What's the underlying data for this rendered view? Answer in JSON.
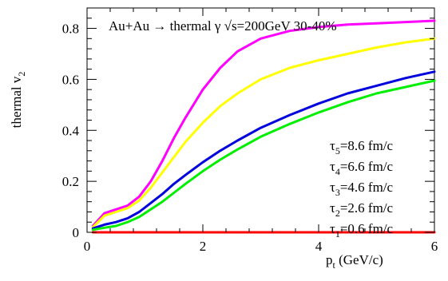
{
  "chart_data": {
    "type": "line",
    "title": "Au+Au → thermal γ √s=200GeV 30-40%",
    "title_parts": {
      "prefix": "Au+Au ",
      "arrow": "→",
      "middle": " thermal γ ",
      "root": "√",
      "suffix": "s=200GeV 30-40%"
    },
    "xlabel": {
      "main": "p",
      "sub": "t",
      "rest": " (GeV/c)"
    },
    "ylabel": {
      "main": "thermal v",
      "sub": "2"
    },
    "xlim": [
      0,
      6
    ],
    "ylim": [
      0,
      0.88
    ],
    "xticks": [
      0,
      2,
      4,
      6
    ],
    "xtick_labels": [
      "0",
      "2",
      "4",
      "6"
    ],
    "yticks": [
      0,
      0.2,
      0.4,
      0.6,
      0.8
    ],
    "ytick_labels": [
      "0",
      "0.2",
      "0.4",
      "0.6",
      "0.8"
    ],
    "grid": false,
    "legend_placement": "bottom-right",
    "legend": [
      {
        "sym": "τ",
        "sub": "5",
        "text": "=8.6 fm/c"
      },
      {
        "sym": "τ",
        "sub": "4",
        "text": "=6.6 fm/c"
      },
      {
        "sym": "τ",
        "sub": "3",
        "text": "=4.6 fm/c"
      },
      {
        "sym": "τ",
        "sub": "2",
        "text": "=2.6 fm/c"
      },
      {
        "sym": "τ",
        "sub": "1",
        "text": "=0.6 fm/c"
      }
    ],
    "series": [
      {
        "color": "#ff00ff",
        "x": [
          0.1,
          0.3,
          0.5,
          0.7,
          0.9,
          1.1,
          1.3,
          1.5,
          1.7,
          2.0,
          2.3,
          2.6,
          3.0,
          3.5,
          4.0,
          4.5,
          5.0,
          5.5,
          6.0
        ],
        "y": [
          0.025,
          0.075,
          0.09,
          0.105,
          0.14,
          0.2,
          0.28,
          0.37,
          0.45,
          0.56,
          0.645,
          0.71,
          0.76,
          0.79,
          0.805,
          0.815,
          0.82,
          0.825,
          0.83
        ]
      },
      {
        "color": "#ffff00",
        "x": [
          0.1,
          0.3,
          0.5,
          0.7,
          0.9,
          1.1,
          1.3,
          1.5,
          1.7,
          2.0,
          2.3,
          2.6,
          3.0,
          3.5,
          4.0,
          4.5,
          5.0,
          5.5,
          6.0
        ],
        "y": [
          0.02,
          0.065,
          0.08,
          0.095,
          0.125,
          0.175,
          0.235,
          0.295,
          0.355,
          0.43,
          0.495,
          0.545,
          0.6,
          0.645,
          0.675,
          0.7,
          0.725,
          0.745,
          0.76
        ]
      },
      {
        "color": "#0000dd",
        "x": [
          0.1,
          0.3,
          0.5,
          0.7,
          0.9,
          1.1,
          1.3,
          1.5,
          1.7,
          2.0,
          2.3,
          2.6,
          3.0,
          3.5,
          4.0,
          4.5,
          5.0,
          5.5,
          6.0
        ],
        "y": [
          0.015,
          0.03,
          0.04,
          0.055,
          0.08,
          0.115,
          0.15,
          0.19,
          0.225,
          0.275,
          0.32,
          0.36,
          0.41,
          0.46,
          0.505,
          0.545,
          0.575,
          0.605,
          0.63
        ]
      },
      {
        "color": "#00ee00",
        "x": [
          0.1,
          0.3,
          0.5,
          0.7,
          0.9,
          1.1,
          1.3,
          1.5,
          1.7,
          2.0,
          2.3,
          2.6,
          3.0,
          3.5,
          4.0,
          4.5,
          5.0,
          5.5,
          6.0
        ],
        "y": [
          0.01,
          0.018,
          0.025,
          0.04,
          0.06,
          0.09,
          0.12,
          0.155,
          0.19,
          0.24,
          0.285,
          0.325,
          0.375,
          0.425,
          0.47,
          0.51,
          0.545,
          0.57,
          0.595
        ]
      },
      {
        "color": "#ff0000",
        "x": [
          0.1,
          6.0
        ],
        "y": [
          0.0,
          0.0
        ]
      }
    ]
  }
}
